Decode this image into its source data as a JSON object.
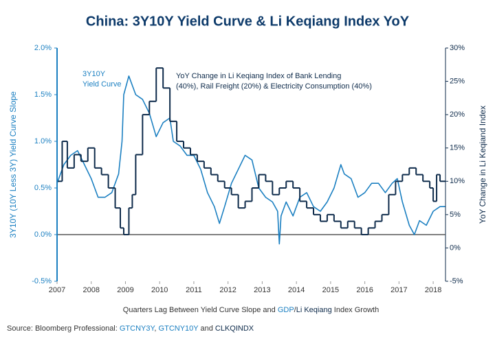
{
  "chart_data": {
    "type": "line",
    "title": "China: 3Y10Y Yield Curve & Li Keqiang Index YoY",
    "ylabel": "3Y10Y (10Y  Less 3Y) Yield Curve Slope",
    "y2label": "YoY Change in Li Keqiand Index",
    "xlabel_parts": [
      {
        "text": "Quarters Lag Between Yield Curve Slope and ",
        "color": "#333333"
      },
      {
        "text": "GDP",
        "color": "#1a7fc1"
      },
      {
        "text": "/",
        "color": "#333333"
      },
      {
        "text": "Li Keqiang",
        "color": "#0d2a4a"
      },
      {
        "text": " Index Growth",
        "color": "#333333"
      }
    ],
    "source_parts": [
      {
        "text": "Source: Bloomberg Professional: ",
        "color": "#333333"
      },
      {
        "text": "GTCNY3Y",
        "color": "#1a7fc1"
      },
      {
        "text": ", ",
        "color": "#333333"
      },
      {
        "text": "GTCNY10Y",
        "color": "#1a7fc1"
      },
      {
        "text": " and ",
        "color": "#333333"
      },
      {
        "text": "CLKQINDX",
        "color": "#0d2a4a"
      }
    ],
    "annotations": [
      {
        "lines": [
          "3Y10Y",
          "Yield Curve"
        ],
        "color": "#1a7fc1"
      },
      {
        "lines": [
          "YoY Change in Li Keqiang Index of Bank Lending",
          "(40%), Rail Freight (20%) & Electricity Consumption (40%)"
        ],
        "color": "#0d2a4a"
      }
    ],
    "xlim": [
      2007,
      2018.36
    ],
    "xticks": [
      2007,
      2008,
      2009,
      2010,
      2011,
      2012,
      2013,
      2014,
      2015,
      2016,
      2017,
      2018
    ],
    "ylim": [
      -0.5,
      2.0
    ],
    "yticks": [
      {
        "value": -0.5,
        "label": "-0.5%"
      },
      {
        "value": 0,
        "label": "0.0%"
      },
      {
        "value": 0.5,
        "label": "0.5%"
      },
      {
        "value": 1,
        "label": "1.0%"
      },
      {
        "value": 1.5,
        "label": "1.5%"
      },
      {
        "value": 2,
        "label": "2.0%"
      }
    ],
    "y2lim": [
      -5,
      30
    ],
    "y2ticks": [
      {
        "value": -5,
        "label": "-5%"
      },
      {
        "value": 0,
        "label": "0%"
      },
      {
        "value": 5,
        "label": "5%"
      },
      {
        "value": 10,
        "label": "10%"
      },
      {
        "value": 15,
        "label": "15%"
      },
      {
        "value": 20,
        "label": "20%"
      },
      {
        "value": 25,
        "label": "25%"
      },
      {
        "value": 30,
        "label": "30%"
      }
    ],
    "zero_line": true,
    "series": [
      {
        "name": "3Y10Y Yield Curve",
        "color": "#1a7fc1",
        "axis": "y",
        "step": false,
        "x": [
          2007.0,
          2007.2,
          2007.4,
          2007.6,
          2007.8,
          2008.0,
          2008.2,
          2008.4,
          2008.6,
          2008.8,
          2008.9,
          2008.95,
          2009.1,
          2009.3,
          2009.5,
          2009.7,
          2009.9,
          2010.1,
          2010.3,
          2010.4,
          2010.6,
          2010.8,
          2011.0,
          2011.2,
          2011.4,
          2011.6,
          2011.75,
          2011.9,
          2012.1,
          2012.3,
          2012.5,
          2012.7,
          2012.9,
          2013.1,
          2013.3,
          2013.45,
          2013.5,
          2013.55,
          2013.7,
          2013.9,
          2014.1,
          2014.3,
          2014.5,
          2014.7,
          2014.9,
          2015.1,
          2015.3,
          2015.4,
          2015.6,
          2015.8,
          2016.0,
          2016.2,
          2016.4,
          2016.6,
          2016.8,
          2016.95,
          2017.1,
          2017.3,
          2017.45,
          2017.6,
          2017.8,
          2018.0,
          2018.2,
          2018.35
        ],
        "values": [
          0.55,
          0.75,
          0.85,
          0.9,
          0.75,
          0.6,
          0.4,
          0.4,
          0.45,
          0.65,
          1.0,
          1.5,
          1.7,
          1.5,
          1.45,
          1.3,
          1.05,
          1.2,
          1.25,
          1.0,
          0.95,
          0.85,
          0.85,
          0.7,
          0.45,
          0.3,
          0.12,
          0.3,
          0.55,
          0.7,
          0.85,
          0.8,
          0.5,
          0.4,
          0.35,
          0.25,
          -0.1,
          0.2,
          0.35,
          0.2,
          0.4,
          0.45,
          0.3,
          0.25,
          0.35,
          0.5,
          0.75,
          0.65,
          0.6,
          0.4,
          0.45,
          0.55,
          0.55,
          0.45,
          0.55,
          0.6,
          0.35,
          0.1,
          0.0,
          0.15,
          0.1,
          0.25,
          0.3,
          0.3
        ]
      },
      {
        "name": "YoY Change in Li Keqiang Index",
        "color": "#0d2a4a",
        "axis": "y2",
        "step": true,
        "x": [
          2007.0,
          2007.15,
          2007.3,
          2007.5,
          2007.7,
          2007.9,
          2008.1,
          2008.3,
          2008.5,
          2008.7,
          2008.85,
          2008.95,
          2009.1,
          2009.2,
          2009.3,
          2009.5,
          2009.7,
          2009.9,
          2010.1,
          2010.3,
          2010.5,
          2010.7,
          2010.9,
          2011.1,
          2011.3,
          2011.5,
          2011.7,
          2011.9,
          2012.1,
          2012.3,
          2012.5,
          2012.7,
          2012.9,
          2013.1,
          2013.3,
          2013.5,
          2013.7,
          2013.9,
          2014.1,
          2014.3,
          2014.5,
          2014.7,
          2014.9,
          2015.1,
          2015.3,
          2015.5,
          2015.7,
          2015.9,
          2016.1,
          2016.3,
          2016.5,
          2016.7,
          2016.9,
          2017.1,
          2017.3,
          2017.5,
          2017.7,
          2017.9,
          2018.0,
          2018.1,
          2018.2,
          2018.35
        ],
        "values": [
          10,
          16,
          12,
          14,
          13,
          15,
          12,
          11,
          9,
          6,
          3,
          2,
          6,
          8,
          14,
          20,
          22,
          27,
          24,
          19,
          16,
          15,
          14,
          13,
          12,
          11,
          10,
          9,
          8,
          6,
          7,
          9,
          11,
          10,
          8,
          9,
          10,
          9,
          7,
          6,
          5,
          4,
          5,
          4,
          3,
          4,
          3,
          2,
          3,
          4,
          5,
          8,
          10,
          11,
          12,
          11,
          10,
          9,
          7,
          11,
          10,
          10
        ]
      }
    ]
  }
}
